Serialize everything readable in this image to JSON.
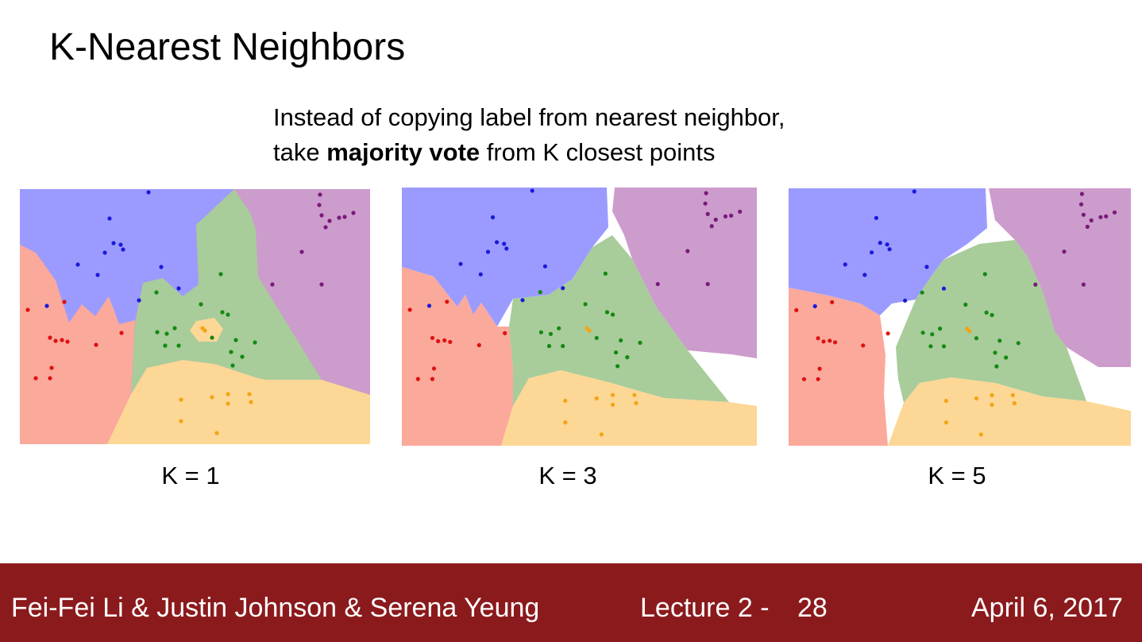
{
  "slide": {
    "title": "K-Nearest Neighbors",
    "subtitle_line1": "Instead of copying label from nearest neighbor,",
    "subtitle_pre": "take ",
    "subtitle_bold": "majority vote",
    "subtitle_post": " from K closest points"
  },
  "panels": [
    {
      "label": "K = 1"
    },
    {
      "label": "K = 3"
    },
    {
      "label": "K = 5"
    }
  ],
  "colors": {
    "blue_region": "#9b9bff",
    "green_region": "#a8cc9a",
    "purple_region": "#cc9ccc",
    "red_region": "#fba99b",
    "orange_region": "#fcd796",
    "blue_point": "#1a1adb",
    "green_point": "#128a12",
    "purple_point": "#7a1a7a",
    "red_point": "#dd1111",
    "orange_point": "#f2a413",
    "footer_bg": "#8b1a1d"
  },
  "footer": {
    "authors": "Fei-Fei Li & Justin Johnson & Serena Yeung",
    "lecture": "Lecture 2 -",
    "page": "28",
    "date": "April 6, 2017"
  }
}
